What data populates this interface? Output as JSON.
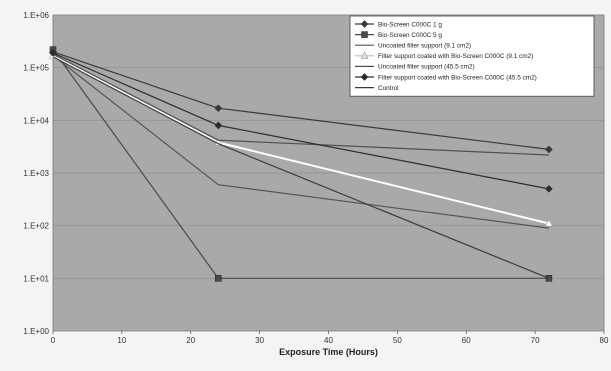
{
  "chart_data": {
    "type": "line",
    "title": "",
    "xlabel": "Exposure Time (Hours)",
    "ylabel": "",
    "y_scale": "log",
    "xlim": [
      0,
      80
    ],
    "ylim": [
      1,
      1000000
    ],
    "x_ticks": [
      0,
      10,
      20,
      30,
      40,
      50,
      60,
      70,
      80
    ],
    "x_tick_labels": [
      "0",
      "10",
      "20",
      "30",
      "40",
      "50",
      "60",
      "70",
      "80"
    ],
    "y_ticks": [
      1,
      10,
      100,
      1000,
      10000,
      100000,
      1000000
    ],
    "y_tick_labels": [
      "1.E+00",
      "1.E+01",
      "1.E+02",
      "1.E+03",
      "1.E+04",
      "1.E+05",
      "1.E+06"
    ],
    "grid": true,
    "legend_position": "top-right",
    "plot_background": "#a9a9a9",
    "series": [
      {
        "name": "Bio-Screen C000C 1 g",
        "x": [
          0,
          24,
          72
        ],
        "y": [
          200000,
          17000,
          2800
        ],
        "color": "#3a3a3a",
        "marker": "diamond"
      },
      {
        "name": "Bio-Screen C000C 5 g",
        "x": [
          0,
          24,
          72
        ],
        "y": [
          220000,
          10,
          10
        ],
        "color": "#4a4a4a",
        "marker": "square"
      },
      {
        "name": "Uncoated filter support (9.1 cm2)",
        "x": [
          0,
          24,
          72
        ],
        "y": [
          170000,
          600,
          90
        ],
        "color": "#555555",
        "marker": "none"
      },
      {
        "name": "Filter support coated with Bio-Screen C000C (9.1 cm2)",
        "x": [
          0,
          24,
          72
        ],
        "y": [
          170000,
          3800,
          110
        ],
        "color": "#ffffff",
        "marker": "triangle"
      },
      {
        "name": "Uncoated filter support (45.5 cm2)",
        "x": [
          0,
          24,
          72
        ],
        "y": [
          180000,
          4200,
          2200
        ],
        "color": "#505050",
        "marker": "none"
      },
      {
        "name": "Filter support coated with Bio-Screen C000C (45.5 cm2)",
        "x": [
          0,
          24,
          72
        ],
        "y": [
          190000,
          8000,
          500
        ],
        "color": "#2e2e2e",
        "marker": "diamond"
      },
      {
        "name": "Control",
        "x": [
          0,
          24,
          72
        ],
        "y": [
          160000,
          3600,
          10
        ],
        "color": "#3c3c3c",
        "marker": "none"
      }
    ]
  }
}
